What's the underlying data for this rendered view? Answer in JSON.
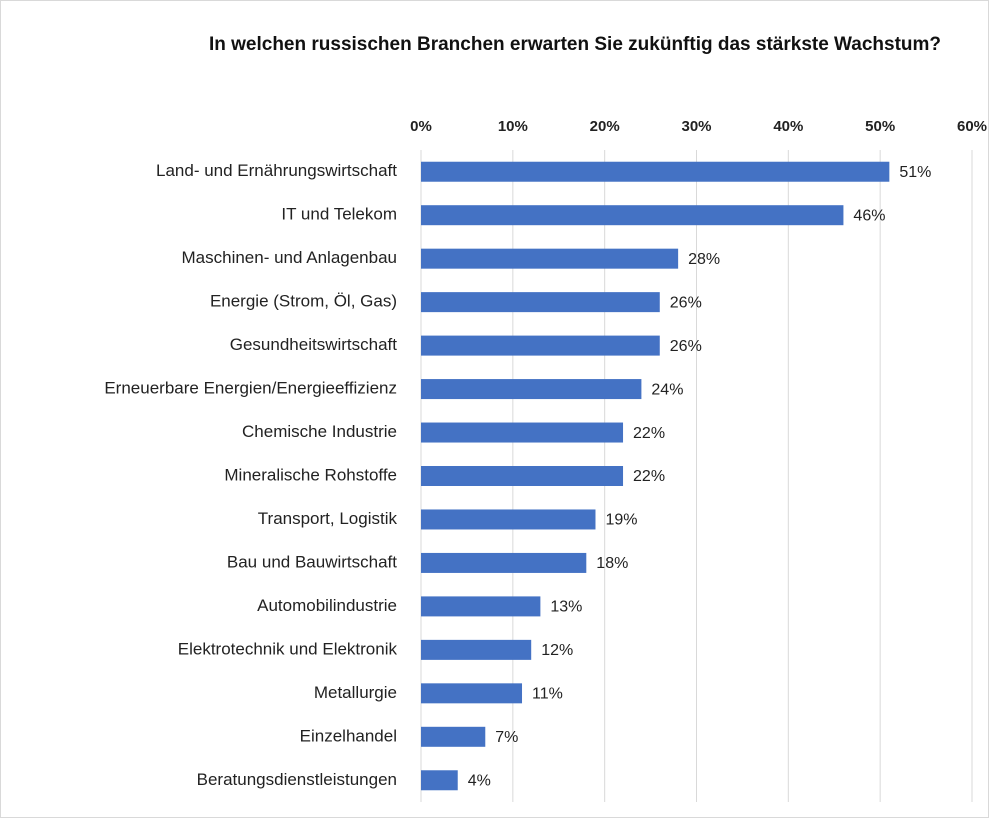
{
  "chart_data": {
    "type": "bar",
    "orientation": "horizontal",
    "title": "In welchen russischen Branchen erwarten Sie zukünftig das stärkste Wachstum?",
    "categories": [
      "Land- und Ernährungswirtschaft",
      "IT und Telekom",
      "Maschinen- und Anlagenbau",
      "Energie (Strom, Öl, Gas)",
      "Gesundheitswirtschaft",
      "Erneuerbare Energien/Energieeffizienz",
      "Chemische Industrie",
      "Mineralische Rohstoffe",
      "Transport, Logistik",
      "Bau und Bauwirtschaft",
      "Automobilindustrie",
      "Elektrotechnik und Elektronik",
      "Metallurgie",
      "Einzelhandel",
      "Beratungsdienstleistungen"
    ],
    "values": [
      51,
      46,
      28,
      26,
      26,
      24,
      22,
      22,
      19,
      18,
      13,
      12,
      11,
      7,
      4
    ],
    "value_labels": [
      "51%",
      "46%",
      "28%",
      "26%",
      "26%",
      "24%",
      "22%",
      "22%",
      "19%",
      "18%",
      "13%",
      "12%",
      "11%",
      "7%",
      "4%"
    ],
    "color": "#4472c4",
    "xlim": [
      0,
      60
    ],
    "xticks": [
      {
        "value": 0,
        "label": "0%"
      },
      {
        "value": 10,
        "label": "10%"
      },
      {
        "value": 20,
        "label": "20%"
      },
      {
        "value": 30,
        "label": "30%"
      },
      {
        "value": 40,
        "label": "40%"
      },
      {
        "value": 50,
        "label": "50%"
      },
      {
        "value": 60,
        "label": "60%"
      }
    ],
    "grid": true
  }
}
